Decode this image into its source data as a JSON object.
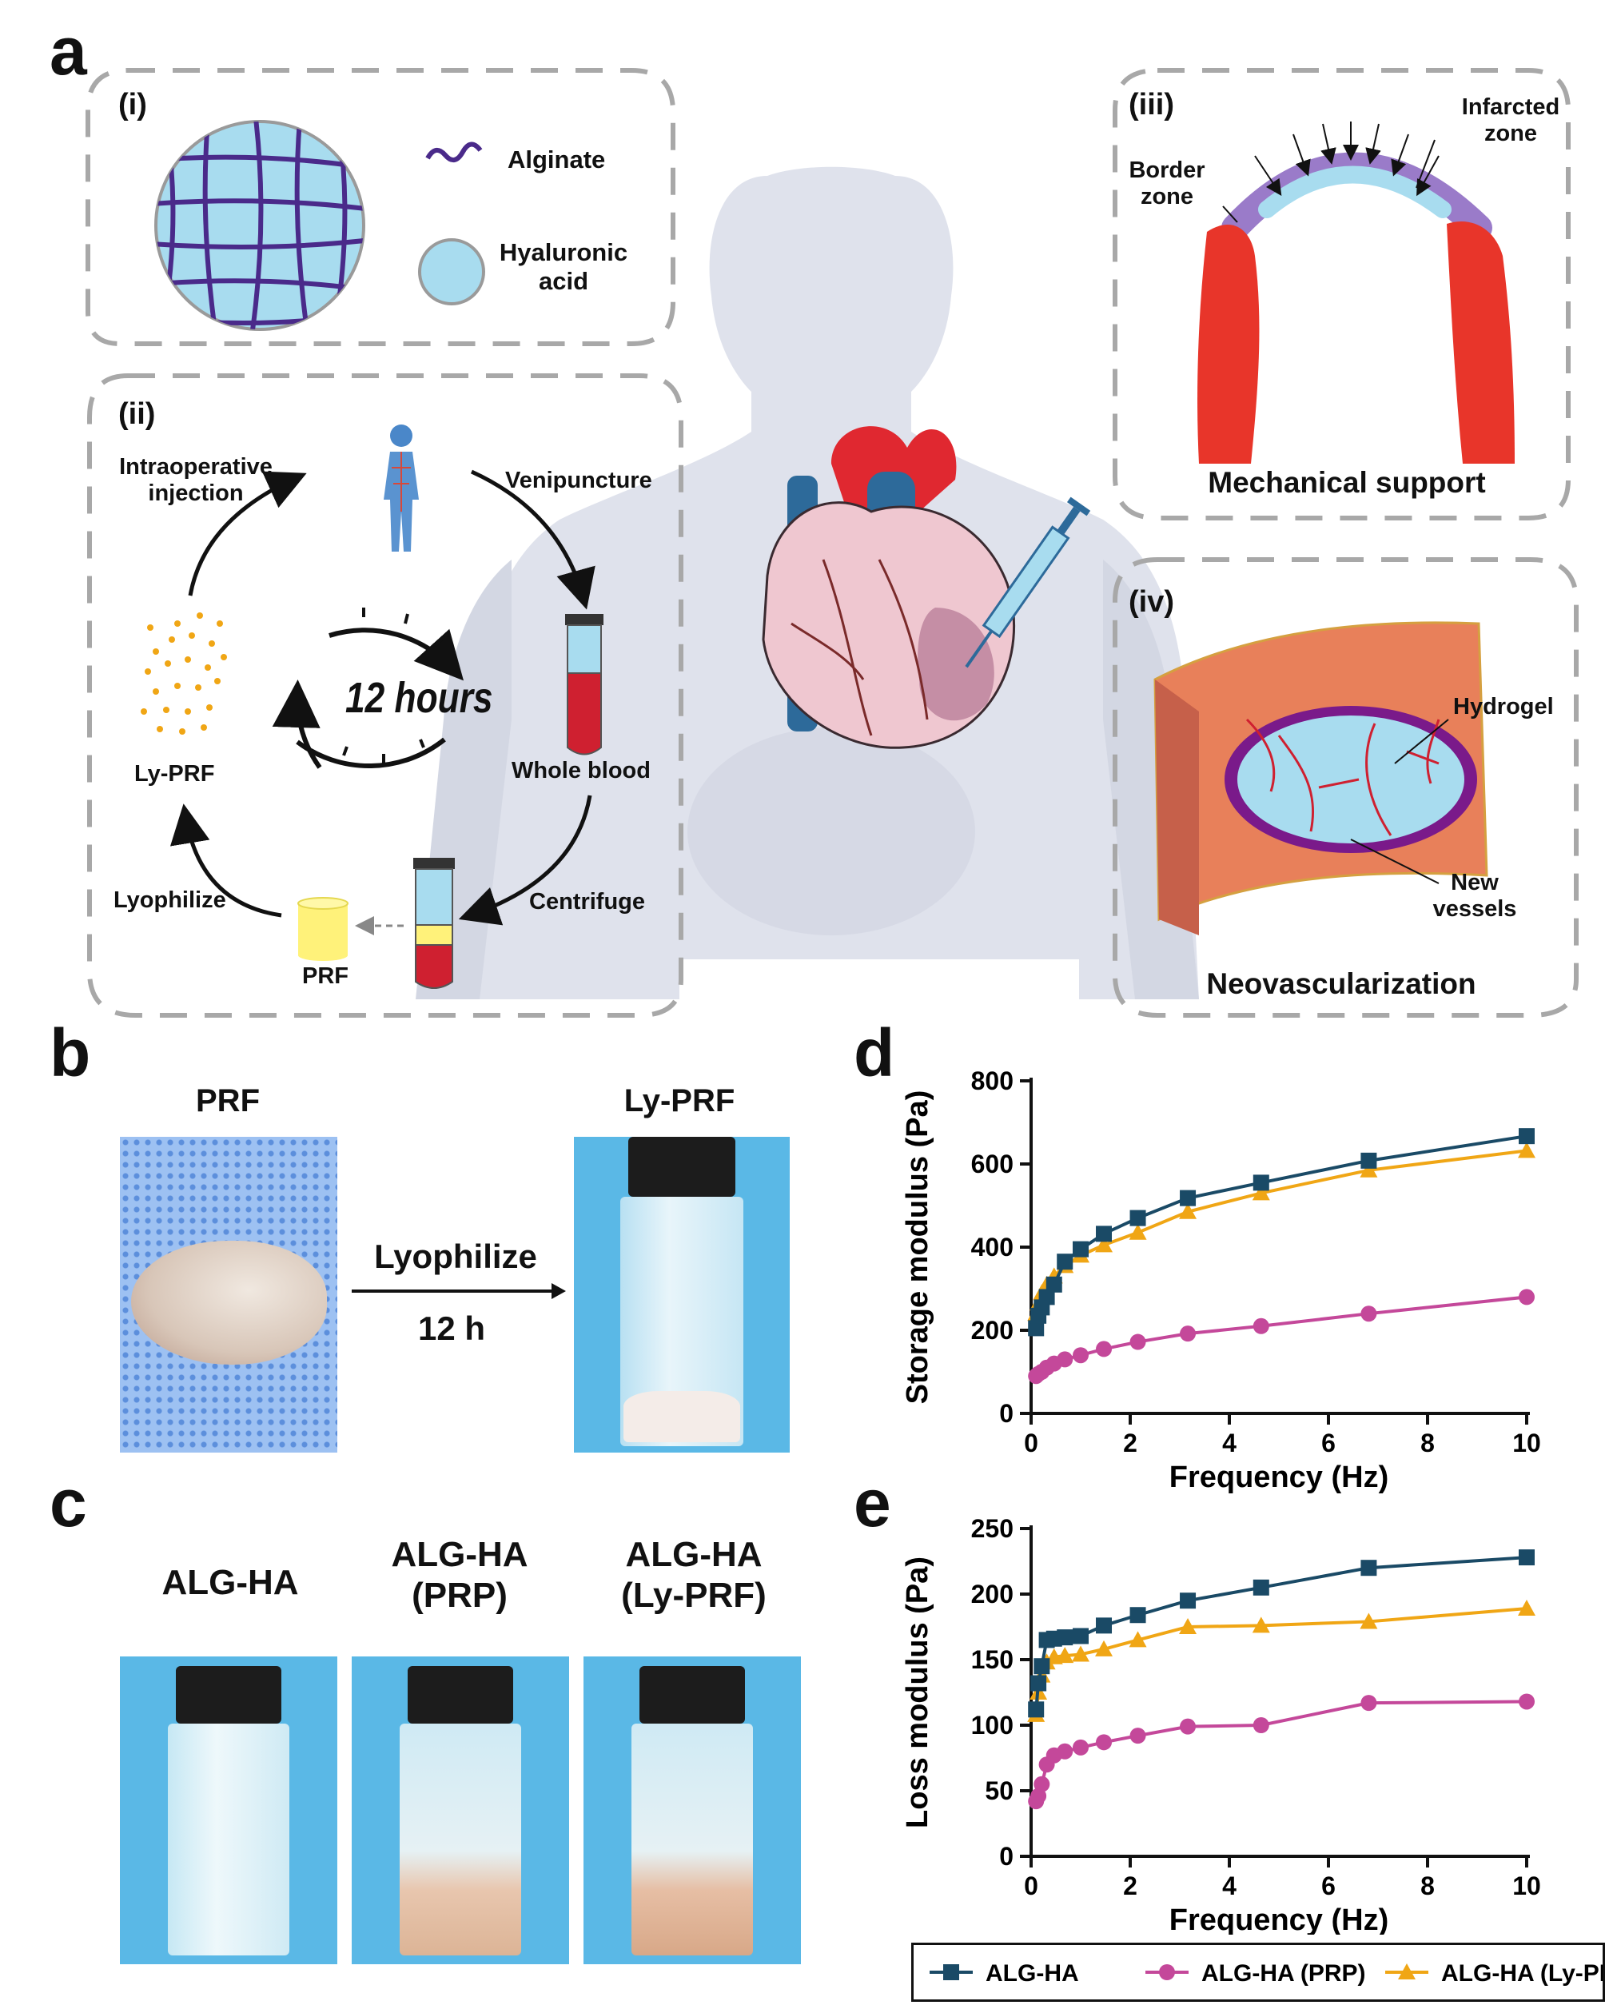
{
  "panels": {
    "a": "a",
    "b": "b",
    "c": "c",
    "d": "d",
    "e": "e"
  },
  "panel_a": {
    "i": {
      "tag": "(i)",
      "legend": [
        {
          "label": "Alginate",
          "icon": "purple-squiggle-icon"
        },
        {
          "label": "Hyaluronic\nacid",
          "icon": "blue-circle-icon"
        }
      ]
    },
    "ii": {
      "tag": "(ii)",
      "steps": {
        "venipuncture": "Venipuncture",
        "whole_blood": "Whole blood",
        "centrifuge": "Centrifuge",
        "prf": "PRF",
        "lyophilize": "Lyophilize",
        "ly_prf": "Ly-PRF",
        "injection": "Intraoperative\ninjection"
      },
      "clock_label": "12 hours"
    },
    "iii": {
      "tag": "(iii)",
      "labels": {
        "border_zone": "Border\nzone",
        "infarcted_zone": "Infarcted\nzone"
      },
      "caption": "Mechanical support"
    },
    "iv": {
      "tag": "(iv)",
      "labels": {
        "hydrogel": "Hydrogel",
        "new_vessels": "New\nvessels"
      },
      "caption": "Neovascularization"
    }
  },
  "panel_b": {
    "left_title": "PRF",
    "right_title": "Ly-PRF",
    "arrow_top": "Lyophilize",
    "arrow_bottom": "12 h"
  },
  "panel_c": {
    "titles": [
      "ALG-HA",
      "ALG-HA\n(PRP)",
      "ALG-HA\n(Ly-PRF)"
    ]
  },
  "legend": [
    {
      "name": "ALG-HA",
      "color": "#1a4a66",
      "marker": "square"
    },
    {
      "name": "ALG-HA (PRP)",
      "color": "#c4489a",
      "marker": "circle"
    },
    {
      "name": "ALG-HA (Ly-PRF)",
      "color": "#f0a615",
      "marker": "triangle"
    }
  ],
  "chart_data": [
    {
      "panel": "d",
      "type": "line",
      "xlabel": "Frequency (Hz)",
      "ylabel": "Storage modulus (Pa)",
      "xlim": [
        0,
        10
      ],
      "ylim": [
        0,
        800
      ],
      "xticks": [
        0,
        2,
        4,
        6,
        8,
        10
      ],
      "yticks": [
        0,
        200,
        400,
        600,
        800
      ],
      "x": [
        0.1,
        0.147,
        0.215,
        0.316,
        0.464,
        0.681,
        1.0,
        1.468,
        2.154,
        3.162,
        4.642,
        6.813,
        10.0
      ],
      "series": [
        {
          "name": "ALG-HA",
          "values": [
            205,
            235,
            255,
            280,
            310,
            365,
            395,
            432,
            470,
            518,
            555,
            608,
            667
          ]
        },
        {
          "name": "ALG-HA (PRP)",
          "values": [
            90,
            95,
            100,
            110,
            120,
            130,
            140,
            155,
            172,
            192,
            210,
            240,
            280
          ]
        },
        {
          "name": "ALG-HA (Ly-PRF)",
          "values": [
            240,
            265,
            290,
            310,
            330,
            355,
            380,
            405,
            435,
            485,
            530,
            585,
            632
          ]
        }
      ]
    },
    {
      "panel": "e",
      "type": "line",
      "xlabel": "Frequency (Hz)",
      "ylabel": "Loss modulus (Pa)",
      "xlim": [
        0,
        10
      ],
      "ylim": [
        0,
        250
      ],
      "xticks": [
        0,
        2,
        4,
        6,
        8,
        10
      ],
      "yticks": [
        0,
        50,
        100,
        150,
        200,
        250
      ],
      "x": [
        0.1,
        0.147,
        0.215,
        0.316,
        0.464,
        0.681,
        1.0,
        1.468,
        2.154,
        3.162,
        4.642,
        6.813,
        10.0
      ],
      "series": [
        {
          "name": "ALG-HA",
          "values": [
            112,
            132,
            145,
            165,
            166,
            167,
            168,
            176,
            184,
            195,
            205,
            220,
            228
          ]
        },
        {
          "name": "ALG-HA (PRP)",
          "values": [
            42,
            46,
            55,
            70,
            77,
            80,
            83,
            87,
            92,
            99,
            100,
            117,
            118
          ]
        },
        {
          "name": "ALG-HA (Ly-PRF)",
          "values": [
            108,
            125,
            138,
            148,
            152,
            153,
            154,
            158,
            165,
            175,
            176,
            179,
            189
          ]
        }
      ]
    }
  ]
}
